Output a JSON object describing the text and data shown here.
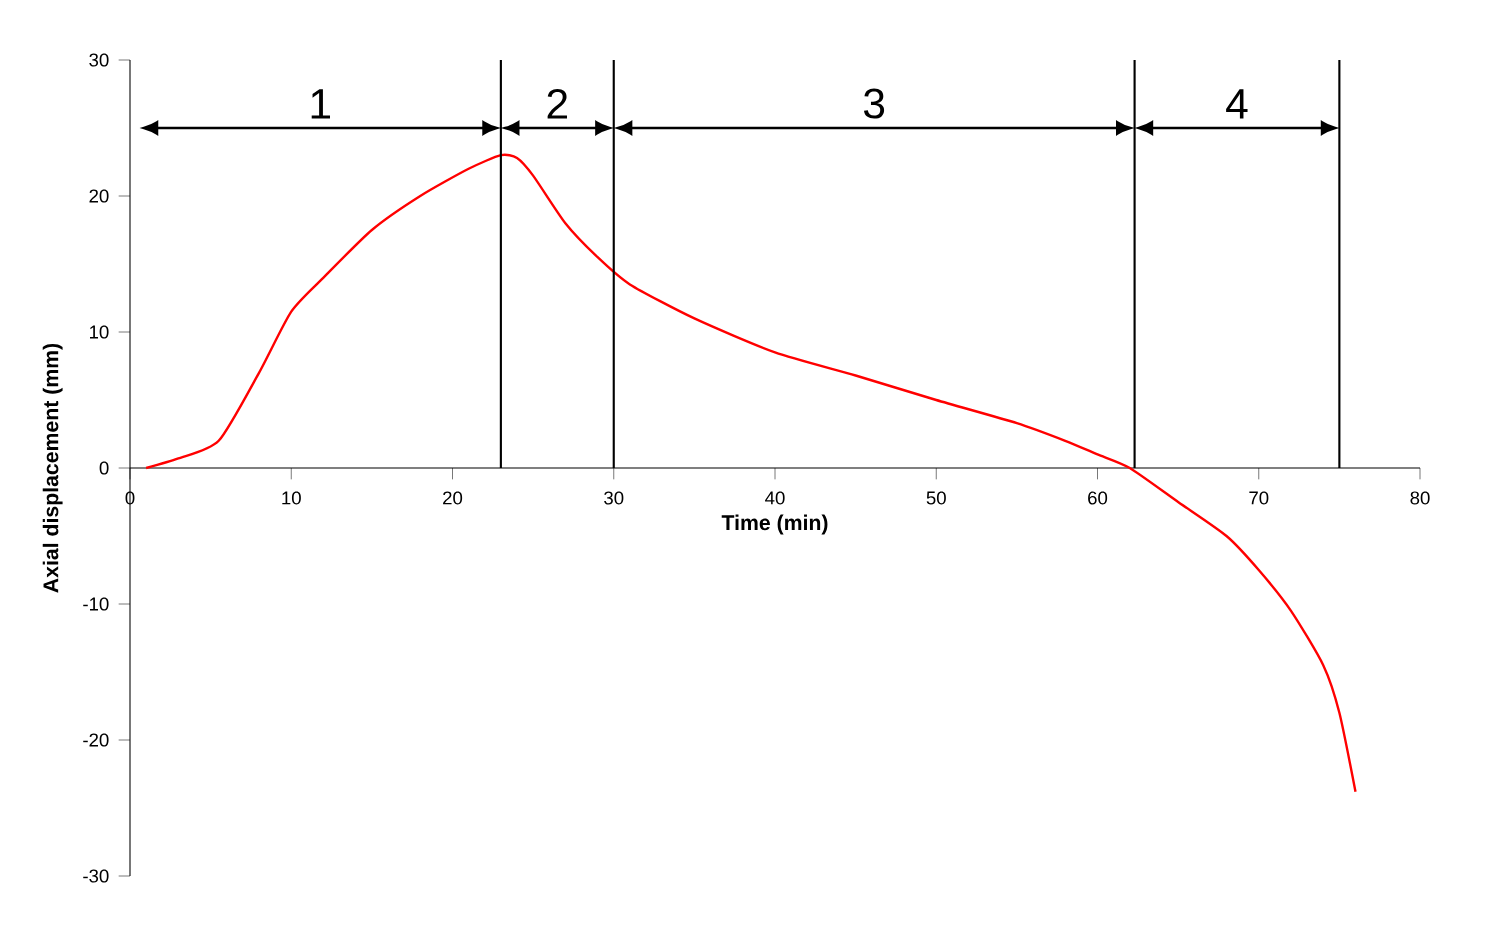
{
  "chart_data": {
    "type": "line",
    "xlabel": "Time (min)",
    "ylabel": "Axial displacement (mm)",
    "x": [
      1,
      3,
      5.5,
      8,
      10,
      12,
      15,
      18,
      21,
      23,
      24,
      25,
      27,
      29,
      31,
      35,
      40,
      45,
      50,
      55,
      58,
      60,
      62,
      65,
      68,
      70,
      72,
      74,
      75,
      76
    ],
    "series": [
      {
        "color": "#ff0000",
        "values": [
          0,
          0.7,
          2,
          7,
          11.5,
          14,
          17.5,
          20,
          22,
          23,
          22.8,
          21.5,
          18,
          15.5,
          13.5,
          11,
          8.5,
          6.8,
          5,
          3.3,
          2,
          1,
          0,
          -2.5,
          -5,
          -7.5,
          -10.5,
          -14.5,
          -18,
          -23.8
        ]
      }
    ],
    "xlim": [
      0,
      80
    ],
    "ylim": [
      -30,
      30
    ],
    "xticks": [
      0,
      10,
      20,
      30,
      40,
      50,
      60,
      70,
      80
    ],
    "yticks": [
      -30,
      -20,
      -10,
      0,
      10,
      20,
      30
    ],
    "ref_lines": [
      {
        "axis": "x",
        "value": 23,
        "color": "#000000"
      },
      {
        "axis": "x",
        "value": 30,
        "color": "#000000"
      },
      {
        "axis": "x",
        "value": 62.3,
        "color": "#000000"
      },
      {
        "axis": "x",
        "value": 75,
        "color": "#000000"
      }
    ],
    "annotations": [
      "1",
      "2",
      "3",
      "4"
    ],
    "grid": false,
    "marker": "none",
    "line_style": "solid"
  }
}
